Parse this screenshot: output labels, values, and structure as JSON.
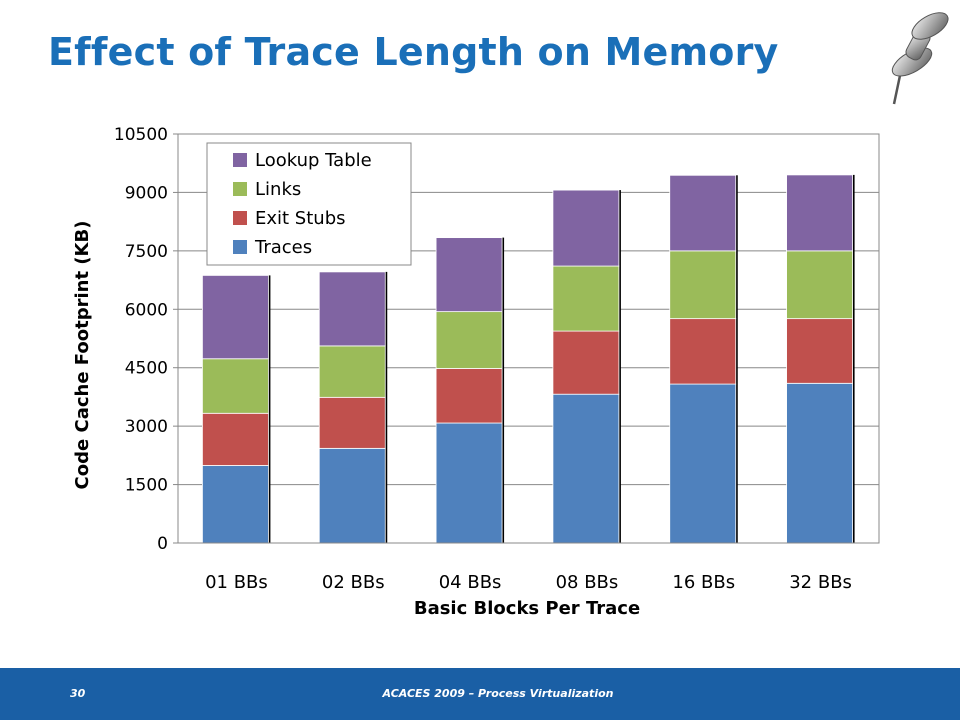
{
  "slide": {
    "title": "Effect of Trace Length on Memory",
    "page_number": "30",
    "footer": "ACACES 2009 – Process Virtualization"
  },
  "icons": {
    "decoration": "pushpin-icon"
  },
  "colors": {
    "title": "#1a6fb8",
    "footer_bar": "#1a5fa5",
    "traces": "#4f81bd",
    "exit_stubs": "#c0504d",
    "links": "#9bbb59",
    "lookup_table": "#8064a2"
  },
  "chart_data": {
    "type": "bar",
    "stacked": true,
    "title": "",
    "xlabel": "Basic Blocks Per Trace",
    "ylabel": "Code Cache Footprint (KB)",
    "ylim": [
      0,
      10500
    ],
    "yticks": [
      "0",
      "1500",
      "3000",
      "4500",
      "6000",
      "7500",
      "9000",
      "10500"
    ],
    "grid": true,
    "legend_position": "top-left",
    "categories": [
      "01 BBs",
      "02 BBs",
      "04 BBs",
      "08 BBs",
      "16 BBs",
      "32 BBs"
    ],
    "series": [
      {
        "name": "Traces",
        "color": "#4f81bd",
        "values": [
          1990,
          2430,
          3080,
          3820,
          4080,
          4100
        ]
      },
      {
        "name": "Exit Stubs",
        "color": "#c0504d",
        "values": [
          1340,
          1310,
          1400,
          1620,
          1680,
          1660
        ]
      },
      {
        "name": "Links",
        "color": "#9bbb59",
        "values": [
          1400,
          1320,
          1460,
          1670,
          1740,
          1740
        ]
      },
      {
        "name": "Lookup Table",
        "color": "#8064a2",
        "values": [
          2140,
          1900,
          1900,
          1950,
          1940,
          1950
        ]
      }
    ],
    "legend_order": [
      "Lookup Table",
      "Links",
      "Exit Stubs",
      "Traces"
    ]
  }
}
